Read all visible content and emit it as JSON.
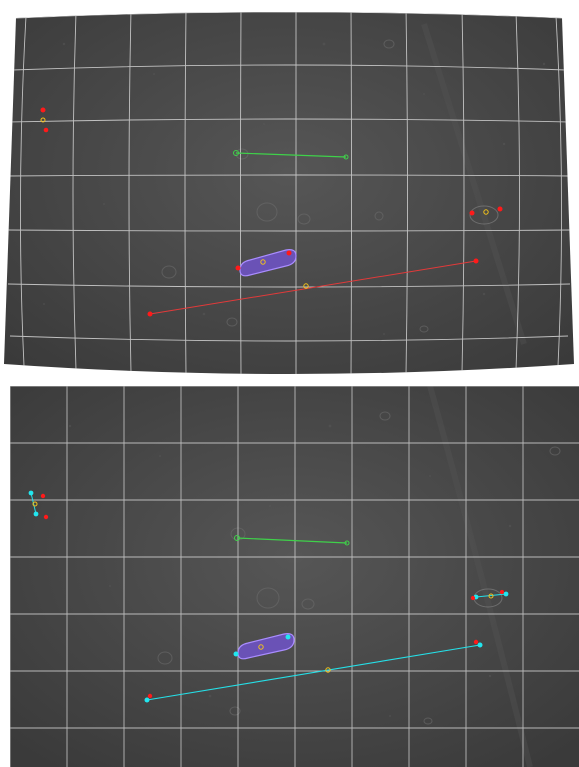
{
  "panels": [
    {
      "id": "top",
      "view": "distorted",
      "overlay_color": "#ff2a2a",
      "grid_color": "#d8d8d8"
    },
    {
      "id": "bottom",
      "view": "undistorted",
      "overlay_color": "#25e0e8",
      "grid_color": "#d8d8d8"
    }
  ],
  "colors": {
    "floor": "#4b4b4b",
    "floor_dark": "#3a3a3a",
    "marker_red": "#ff1a1a",
    "marker_cyan": "#22e6ef",
    "centroid_yellow": "#f2c21a",
    "guide_green": "#3fd14a",
    "capsule_purple": "#6a52b6",
    "capsule_outline": "#a98cff"
  },
  "icons": {
    "capsule": "object-capsule-icon",
    "marker": "keypoint-marker-icon",
    "centroid": "centroid-icon"
  }
}
